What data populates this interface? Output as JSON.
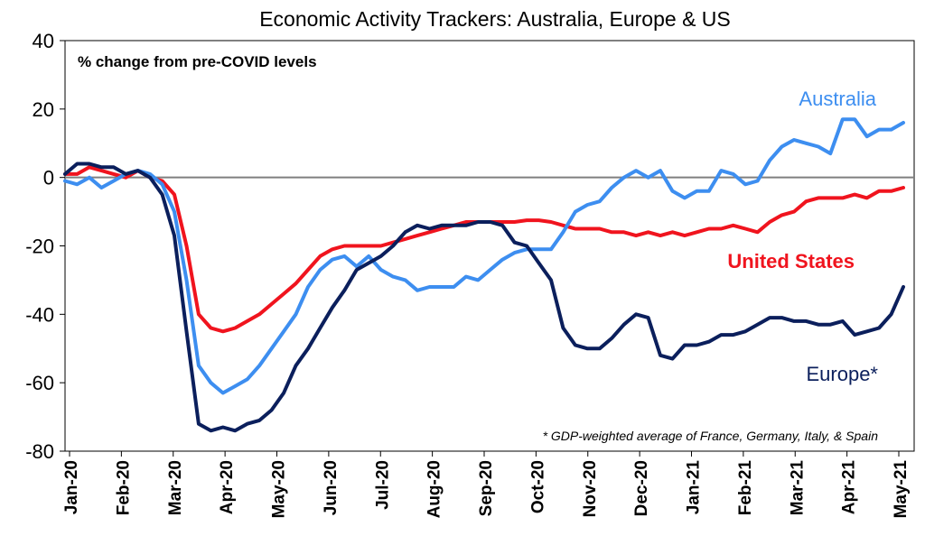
{
  "chart_data": {
    "type": "line",
    "title": "Economic Activity Trackers: Australia, Europe & US",
    "subtitle": "% change from pre-COVID levels",
    "footnote": "* GDP-weighted average of France, Germany, Italy, & Spain",
    "ylim": [
      -80,
      40
    ],
    "yticks": [
      40,
      20,
      0,
      -20,
      -40,
      -60,
      -80
    ],
    "x_tick_labels": [
      "Jan-20",
      "Feb-20",
      "Mar-20",
      "Apr-20",
      "May-20",
      "Jun-20",
      "Jul-20",
      "Aug-20",
      "Sep-20",
      "Oct-20",
      "Nov-20",
      "Dec-20",
      "Jan-21",
      "Feb-21",
      "Mar-21",
      "Apr-21",
      "May-21"
    ],
    "grid": false,
    "zero_line": true,
    "series": [
      {
        "name": "Australia",
        "color": "#3d8ef0",
        "values": [
          -1,
          -2,
          0,
          -3,
          -1,
          1,
          2,
          1,
          -2,
          -10,
          -30,
          -55,
          -60,
          -63,
          -61,
          -59,
          -55,
          -50,
          -45,
          -40,
          -32,
          -27,
          -24,
          -23,
          -26,
          -23,
          -27,
          -29,
          -30,
          -33,
          -32,
          -32,
          -32,
          -29,
          -30,
          -27,
          -24,
          -22,
          -21,
          -21,
          -21,
          -16,
          -10,
          -8,
          -7,
          -3,
          0,
          2,
          0,
          2,
          -4,
          -6,
          -4,
          -4,
          2,
          1,
          -2,
          -1,
          5,
          9,
          11,
          10,
          9,
          7,
          17,
          17,
          12,
          14,
          14,
          16
        ]
      },
      {
        "name": "United States",
        "color": "#f0141e",
        "values": [
          1,
          1,
          3,
          2,
          1,
          0,
          2,
          0,
          -1,
          -5,
          -20,
          -40,
          -44,
          -45,
          -44,
          -42,
          -40,
          -37,
          -34,
          -31,
          -27,
          -23,
          -21,
          -20,
          -20,
          -20,
          -20,
          -19,
          -18,
          -17,
          -16,
          -15,
          -14,
          -13,
          -13,
          -13,
          -13,
          -13,
          -12.5,
          -12.5,
          -13,
          -14,
          -15,
          -15,
          -15,
          -16,
          -16,
          -17,
          -16,
          -17,
          -16,
          -17,
          -16,
          -15,
          -15,
          -14,
          -15,
          -16,
          -13,
          -11,
          -10,
          -7,
          -6,
          -6,
          -6,
          -5,
          -6,
          -4,
          -4,
          -3
        ]
      },
      {
        "name": "Europe*",
        "color": "#0b1f5c",
        "values": [
          1,
          4,
          4,
          3,
          3,
          1,
          2,
          0,
          -5,
          -17,
          -45,
          -72,
          -74,
          -73,
          -74,
          -72,
          -71,
          -68,
          -63,
          -55,
          -50,
          -44,
          -38,
          -33,
          -27,
          -25,
          -23,
          -20,
          -16,
          -14,
          -15,
          -14,
          -14,
          -14,
          -13,
          -13,
          -14,
          -19,
          -20,
          -25,
          -30,
          -44,
          -49,
          -50,
          -50,
          -47,
          -43,
          -40,
          -41,
          -52,
          -53,
          -49,
          -49,
          -48,
          -46,
          -46,
          -45,
          -43,
          -41,
          -41,
          -42,
          -42,
          -43,
          -43,
          -42,
          -46,
          -45,
          -44,
          -40,
          -32
        ]
      }
    ]
  }
}
